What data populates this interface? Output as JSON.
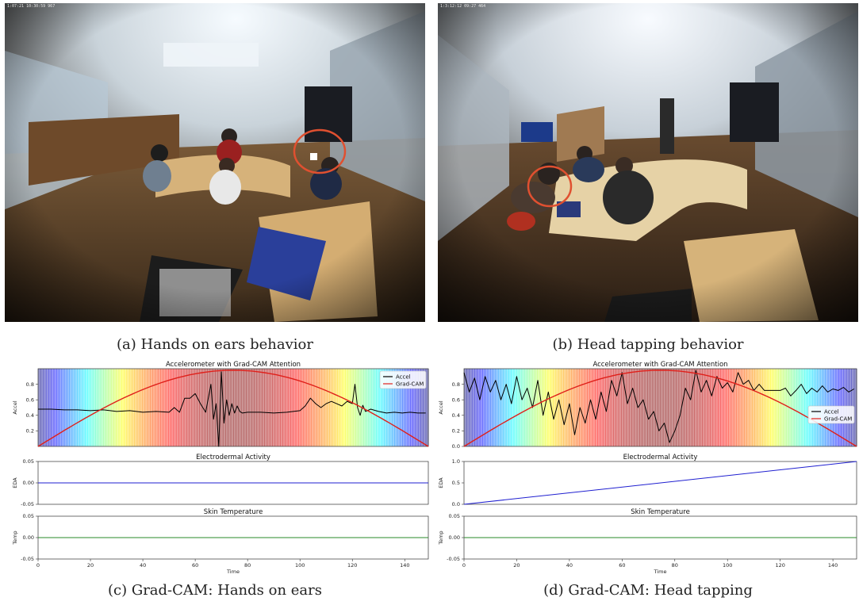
{
  "photos": [
    {
      "id": "a",
      "timestamp": "1:07:21 10:30:59 967"
    },
    {
      "id": "b",
      "timestamp": "1:3:12:12 09:27 464"
    }
  ],
  "captions": {
    "a": "(a) Hands on ears behavior",
    "b": "(b) Head tapping behavior",
    "c": "(c) Grad-CAM: Hands on ears",
    "d": "(d) Grad-CAM: Head tapping"
  },
  "colors": {
    "accel": "#000000",
    "gradcam": "#e0201b",
    "eda": "#1f1fd0",
    "temp": "#2a8a2a",
    "circle": "#e05030"
  },
  "chart_data": [
    {
      "id": "c",
      "type": "line",
      "panels": [
        {
          "title": "Accelerometer with Grad-CAM Attention",
          "ylabel": "Accel",
          "ylim": [
            0,
            1.0
          ],
          "yticks": [
            "0.2",
            "0.4",
            "0.6",
            "0.8"
          ],
          "ytick_values": [
            0.2,
            0.4,
            0.6,
            0.8
          ],
          "legend": "top-right",
          "series": [
            {
              "name": "Accel",
              "x": [
                0,
                5,
                10,
                15,
                20,
                25,
                30,
                35,
                40,
                45,
                50,
                52,
                54,
                56,
                58,
                60,
                62,
                64,
                66,
                67,
                68,
                69,
                70,
                71,
                72,
                73,
                74,
                75,
                76,
                77,
                78,
                80,
                85,
                90,
                95,
                100,
                102,
                104,
                106,
                108,
                110,
                112,
                114,
                116,
                118,
                120,
                121,
                122,
                123,
                124,
                125,
                127,
                130,
                133,
                136,
                139,
                142,
                145,
                148
              ],
              "y": [
                0.48,
                0.48,
                0.47,
                0.47,
                0.46,
                0.47,
                0.45,
                0.46,
                0.44,
                0.45,
                0.44,
                0.5,
                0.44,
                0.62,
                0.62,
                0.68,
                0.55,
                0.44,
                0.8,
                0.35,
                0.55,
                0.0,
                0.96,
                0.3,
                0.6,
                0.4,
                0.55,
                0.43,
                0.52,
                0.45,
                0.43,
                0.44,
                0.44,
                0.43,
                0.44,
                0.46,
                0.52,
                0.62,
                0.55,
                0.5,
                0.55,
                0.58,
                0.55,
                0.52,
                0.58,
                0.55,
                0.8,
                0.5,
                0.4,
                0.53,
                0.45,
                0.48,
                0.45,
                0.43,
                0.44,
                0.43,
                0.44,
                0.43,
                0.43
              ]
            },
            {
              "name": "Grad-CAM",
              "shape": "sine-bump",
              "x_range": [
                0,
                149
              ],
              "peak": 0.98
            }
          ]
        },
        {
          "title": "Electrodermal Activity",
          "ylabel": "EDA",
          "ylim": [
            -0.05,
            0.05
          ],
          "yticks": [
            "0.05",
            "0.00",
            "-0.05"
          ],
          "ytick_values": [
            0.05,
            0.0,
            -0.05
          ],
          "series": [
            {
              "name": "",
              "x": [
                0,
                149
              ],
              "y": [
                0.0,
                0.0
              ]
            }
          ]
        },
        {
          "title": "Skin Temperature",
          "ylabel": "Temp",
          "ylim": [
            -0.05,
            0.05
          ],
          "yticks": [
            "0.05",
            "0.00",
            "-0.05"
          ],
          "ytick_values": [
            0.05,
            0.0,
            -0.05
          ],
          "series": [
            {
              "name": "",
              "x": [
                0,
                149
              ],
              "y": [
                0.0,
                0.0
              ]
            }
          ]
        }
      ],
      "xlabel": "Time",
      "xlim": [
        0,
        149
      ],
      "xticks": [
        "0",
        "20",
        "40",
        "60",
        "80",
        "100",
        "120",
        "140"
      ],
      "xtick_values": [
        0,
        20,
        40,
        60,
        80,
        100,
        120,
        140
      ]
    },
    {
      "id": "d",
      "type": "line",
      "panels": [
        {
          "title": "Accelerometer with Grad-CAM Attention",
          "ylabel": "Accel",
          "ylim": [
            0,
            1.0
          ],
          "yticks": [
            "0.0",
            "0.2",
            "0.4",
            "0.6",
            "0.8"
          ],
          "ytick_values": [
            0.0,
            0.2,
            0.4,
            0.6,
            0.8
          ],
          "legend": "center-right",
          "series": [
            {
              "name": "Accel",
              "x": [
                0,
                2,
                4,
                6,
                8,
                10,
                12,
                14,
                16,
                18,
                20,
                22,
                24,
                26,
                28,
                30,
                32,
                34,
                36,
                38,
                40,
                42,
                44,
                46,
                48,
                50,
                52,
                54,
                56,
                58,
                60,
                62,
                64,
                66,
                68,
                70,
                72,
                74,
                76,
                78,
                80,
                82,
                84,
                86,
                88,
                90,
                92,
                94,
                96,
                98,
                100,
                102,
                104,
                106,
                108,
                110,
                112,
                114,
                116,
                118,
                120,
                122,
                124,
                126,
                128,
                130,
                132,
                134,
                136,
                138,
                140,
                142,
                144,
                146,
                148
              ],
              "y": [
                0.95,
                0.7,
                0.88,
                0.6,
                0.9,
                0.7,
                0.85,
                0.6,
                0.8,
                0.55,
                0.9,
                0.6,
                0.75,
                0.5,
                0.85,
                0.4,
                0.7,
                0.35,
                0.6,
                0.28,
                0.55,
                0.15,
                0.5,
                0.3,
                0.6,
                0.35,
                0.7,
                0.45,
                0.85,
                0.65,
                0.95,
                0.55,
                0.75,
                0.5,
                0.6,
                0.35,
                0.45,
                0.2,
                0.3,
                0.05,
                0.2,
                0.4,
                0.75,
                0.6,
                0.98,
                0.7,
                0.85,
                0.65,
                0.9,
                0.75,
                0.82,
                0.7,
                0.95,
                0.8,
                0.85,
                0.72,
                0.8,
                0.72,
                0.72,
                0.72,
                0.72,
                0.75,
                0.65,
                0.72,
                0.8,
                0.68,
                0.75,
                0.7,
                0.78,
                0.7,
                0.74,
                0.72,
                0.76,
                0.7,
                0.74
              ]
            },
            {
              "name": "Grad-CAM",
              "shape": "sine-bump",
              "x_range": [
                0,
                149
              ],
              "peak": 0.98
            }
          ]
        },
        {
          "title": "Electrodermal Activity",
          "ylabel": "EDA",
          "ylim": [
            0,
            1.0
          ],
          "yticks": [
            "0.0",
            "0.5",
            "1.0"
          ],
          "ytick_values": [
            0.0,
            0.5,
            1.0
          ],
          "series": [
            {
              "name": "",
              "x": [
                0,
                149
              ],
              "y": [
                0.0,
                1.0
              ]
            }
          ]
        },
        {
          "title": "Skin Temperature",
          "ylabel": "Temp",
          "ylim": [
            -0.05,
            0.05
          ],
          "yticks": [
            "0.05",
            "0.00",
            "-0.05"
          ],
          "ytick_values": [
            0.05,
            0.0,
            -0.05
          ],
          "series": [
            {
              "name": "",
              "x": [
                0,
                149
              ],
              "y": [
                0.0,
                0.0
              ]
            }
          ]
        }
      ],
      "xlabel": "Time",
      "xlim": [
        0,
        149
      ],
      "xticks": [
        "0",
        "20",
        "40",
        "60",
        "80",
        "100",
        "120",
        "140"
      ],
      "xtick_values": [
        0,
        20,
        40,
        60,
        80,
        100,
        120,
        140
      ]
    }
  ]
}
